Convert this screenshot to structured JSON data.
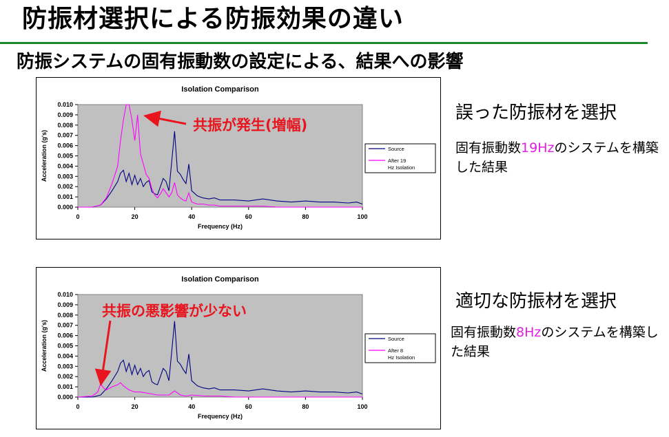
{
  "slide": {
    "title": "防振材選択による防振効果の違い",
    "subtitle": "防振システムの固有振動数の設定による、結果への影響"
  },
  "panels": [
    {
      "heading": "誤った防振材を選択",
      "note_prefix": "固有振動数",
      "note_highlight": "19Hz",
      "note_suffix": "のシステムを構築した結果",
      "callout": "共振が発生(増幅)"
    },
    {
      "heading": "適切な防振材を選択",
      "note_prefix": "固有振動数",
      "note_highlight": "8Hz",
      "note_suffix": "のシステムを構築した結果",
      "callout": "共振の悪影響が少ない"
    }
  ],
  "colors": {
    "source": "#000080",
    "isolated": "#ff00ff",
    "plot_bg": "#c0c0c0",
    "callout": "#e8141e",
    "rule": "#1a8a2a",
    "highlight": "#e020e0"
  },
  "chart_data": [
    {
      "type": "line",
      "title": "Isolation Comparison",
      "xlabel": "Frequency (Hz)",
      "ylabel": "Acceleration (g's)",
      "xlim": [
        0,
        100
      ],
      "ylim": [
        0,
        0.01
      ],
      "xticks": [
        "0",
        "20",
        "40",
        "60",
        "80",
        "100"
      ],
      "yticks": [
        "0.000",
        "0.001",
        "0.002",
        "0.003",
        "0.004",
        "0.005",
        "0.006",
        "0.007",
        "0.008",
        "0.009",
        "0.010"
      ],
      "grid": false,
      "legend": "right",
      "series": [
        {
          "name": "Source",
          "color": "#000080",
          "x": [
            0,
            5,
            8,
            10,
            12,
            14,
            15,
            16,
            17,
            18,
            19,
            20,
            21,
            22,
            23,
            24,
            25,
            26,
            27,
            28,
            29,
            30,
            31,
            32,
            33,
            34,
            35,
            36,
            37,
            38,
            39,
            40,
            42,
            44,
            46,
            48,
            50,
            55,
            60,
            65,
            70,
            75,
            80,
            85,
            90,
            95,
            98,
            100
          ],
          "y": [
            0.0,
            0.0,
            0.0002,
            0.0008,
            0.0016,
            0.0025,
            0.0033,
            0.0036,
            0.0025,
            0.0033,
            0.0022,
            0.0031,
            0.0022,
            0.0028,
            0.002,
            0.0024,
            0.0026,
            0.0015,
            0.0013,
            0.0012,
            0.002,
            0.0028,
            0.0025,
            0.0016,
            0.0045,
            0.0074,
            0.0035,
            0.0032,
            0.0027,
            0.0023,
            0.0042,
            0.0016,
            0.0011,
            0.0009,
            0.0008,
            0.0009,
            0.0007,
            0.0007,
            0.0006,
            0.0008,
            0.0006,
            0.0005,
            0.0006,
            0.0005,
            0.0005,
            0.0004,
            0.0005,
            0.0003
          ]
        },
        {
          "name": "After 19 Hz Isolation",
          "color": "#ff00ff",
          "x": [
            0,
            5,
            8,
            10,
            12,
            14,
            15,
            16,
            17,
            18,
            19,
            20,
            21,
            22,
            23,
            24,
            25,
            26,
            27,
            28,
            29,
            30,
            31,
            32,
            33,
            34,
            35,
            36,
            37,
            38,
            39,
            40,
            42,
            44,
            46,
            48,
            50,
            55,
            60,
            65,
            70,
            75,
            80,
            85,
            90,
            95,
            98,
            100
          ],
          "y": [
            0.0,
            0.0,
            0.0002,
            0.0009,
            0.0023,
            0.004,
            0.0065,
            0.0085,
            0.01,
            0.01,
            0.0085,
            0.0065,
            0.009,
            0.0052,
            0.0042,
            0.0032,
            0.0028,
            0.0018,
            0.0012,
            0.0009,
            0.0013,
            0.0018,
            0.0014,
            0.001,
            0.0014,
            0.0024,
            0.0012,
            0.0009,
            0.0007,
            0.0006,
            0.0014,
            0.0005,
            0.0003,
            0.0003,
            0.0002,
            0.0002,
            0.0001,
            0.0001,
            0.0001,
            0.0001,
            0.0,
            0.0,
            0.0,
            0.0,
            0.0,
            0.0,
            0.0,
            0.0
          ]
        }
      ]
    },
    {
      "type": "line",
      "title": "Isolation Comparison",
      "xlabel": "Frequency (Hz)",
      "ylabel": "Acceleration (g's)",
      "xlim": [
        0,
        100
      ],
      "ylim": [
        0,
        0.01
      ],
      "xticks": [
        "0",
        "20",
        "40",
        "60",
        "80",
        "100"
      ],
      "yticks": [
        "0.000",
        "0.001",
        "0.002",
        "0.003",
        "0.004",
        "0.005",
        "0.006",
        "0.007",
        "0.008",
        "0.009",
        "0.010"
      ],
      "grid": false,
      "legend": "right",
      "series": [
        {
          "name": "Source",
          "color": "#000080",
          "x": [
            0,
            5,
            8,
            10,
            12,
            14,
            15,
            16,
            17,
            18,
            19,
            20,
            21,
            22,
            23,
            24,
            25,
            26,
            27,
            28,
            29,
            30,
            31,
            32,
            33,
            34,
            35,
            36,
            37,
            38,
            39,
            40,
            42,
            44,
            46,
            48,
            50,
            55,
            60,
            65,
            70,
            75,
            80,
            85,
            90,
            95,
            98,
            100
          ],
          "y": [
            0.0,
            0.0,
            0.0002,
            0.0008,
            0.0016,
            0.0025,
            0.0033,
            0.0036,
            0.0025,
            0.0033,
            0.0022,
            0.0031,
            0.0022,
            0.0028,
            0.002,
            0.0024,
            0.0026,
            0.0015,
            0.0013,
            0.0012,
            0.002,
            0.0028,
            0.0025,
            0.0016,
            0.0045,
            0.0074,
            0.0035,
            0.0032,
            0.0027,
            0.0023,
            0.0042,
            0.0016,
            0.0011,
            0.0009,
            0.0008,
            0.0009,
            0.0007,
            0.0007,
            0.0006,
            0.0008,
            0.0006,
            0.0005,
            0.0006,
            0.0005,
            0.0005,
            0.0004,
            0.0005,
            0.0003
          ]
        },
        {
          "name": "After 8 Hz Isolation",
          "color": "#ff00ff",
          "x": [
            0,
            5,
            7,
            8,
            9,
            10,
            12,
            14,
            15,
            16,
            17,
            18,
            20,
            22,
            24,
            26,
            28,
            30,
            32,
            34,
            36,
            38,
            40,
            45,
            50,
            55,
            60,
            70,
            80,
            90,
            100
          ],
          "y": [
            0.0,
            0.0001,
            0.0005,
            0.0013,
            0.0009,
            0.0007,
            0.001,
            0.0012,
            0.0014,
            0.0011,
            0.0009,
            0.0007,
            0.0005,
            0.0005,
            0.0004,
            0.0003,
            0.0002,
            0.0002,
            0.0002,
            0.0006,
            0.0002,
            0.0001,
            0.0002,
            0.0001,
            0.0001,
            0.0,
            0.0,
            0.0,
            0.0,
            0.0,
            0.0
          ]
        }
      ]
    }
  ]
}
